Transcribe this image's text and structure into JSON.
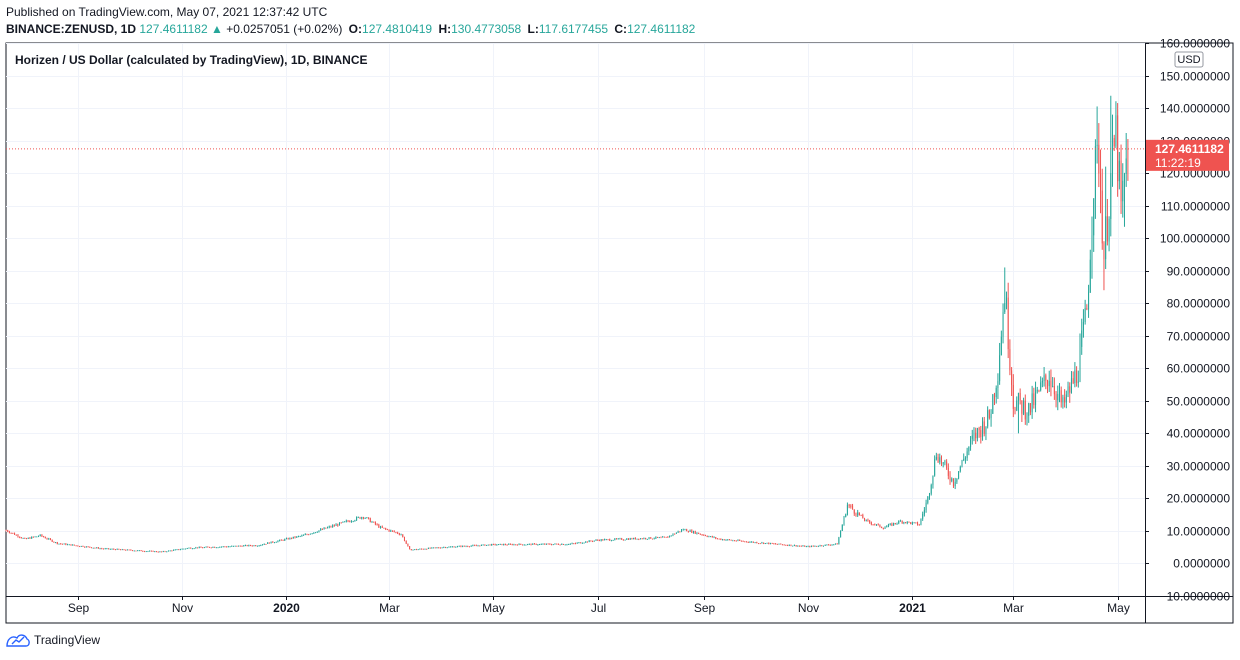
{
  "published_text": "Published on TradingView.com, May 07, 2021 12:37:42 UTC",
  "header": {
    "symbol": "BINANCE:ZENUSD, 1D",
    "last": "127.4611182",
    "change": "+0.0257051 (+0.02%)",
    "open_label": "O:",
    "open": "127.4810419",
    "high_label": "H:",
    "high": "130.4773058",
    "low_label": "L:",
    "low": "117.6177455",
    "close_label": "C:",
    "close": "127.4611182"
  },
  "footer": {
    "brand": "TradingView"
  },
  "colors": {
    "up": "#26a69a",
    "down": "#ef5350",
    "grid": "#f0f3fa",
    "axis": "#131722"
  },
  "chart_data": {
    "type": "candlestick",
    "title": "Horizen / US Dollar (calculated by TradingView), 1D, BINANCE",
    "currency": "USD",
    "price_label": "127.4611182",
    "countdown_label": "11:22:19",
    "ylim": [
      -10,
      160
    ],
    "y_ticks": [
      {
        "value": 160,
        "label": "160.0000000"
      },
      {
        "value": 150,
        "label": "150.0000000"
      },
      {
        "value": 140,
        "label": "140.0000000"
      },
      {
        "value": 130,
        "label": "130.0000000"
      },
      {
        "value": 120,
        "label": "120.0000000"
      },
      {
        "value": 110,
        "label": "110.0000000"
      },
      {
        "value": 100,
        "label": "100.0000000"
      },
      {
        "value": 90,
        "label": "90.0000000"
      },
      {
        "value": 80,
        "label": "80.0000000"
      },
      {
        "value": 70,
        "label": "70.0000000"
      },
      {
        "value": 60,
        "label": "60.0000000"
      },
      {
        "value": 50,
        "label": "50.0000000"
      },
      {
        "value": 40,
        "label": "40.0000000"
      },
      {
        "value": 30,
        "label": "30.0000000"
      },
      {
        "value": 20,
        "label": "20.0000000"
      },
      {
        "value": 10,
        "label": "10.0000000"
      },
      {
        "value": 0,
        "label": "0.0000000"
      },
      {
        "value": -10,
        "label": "−10.0000000"
      }
    ],
    "x_range": [
      "2019-07-21",
      "2021-05-17"
    ],
    "x_ticks": [
      {
        "date": "2019-09-01",
        "label": "Sep",
        "bold": false
      },
      {
        "date": "2019-11-01",
        "label": "Nov",
        "bold": false
      },
      {
        "date": "2020-01-01",
        "label": "2020",
        "bold": true
      },
      {
        "date": "2020-03-01",
        "label": "Mar",
        "bold": false
      },
      {
        "date": "2020-05-01",
        "label": "May",
        "bold": false
      },
      {
        "date": "2020-07-01",
        "label": "Jul",
        "bold": false
      },
      {
        "date": "2020-09-01",
        "label": "Sep",
        "bold": false
      },
      {
        "date": "2020-11-01",
        "label": "Nov",
        "bold": false
      },
      {
        "date": "2021-01-01",
        "label": "2021",
        "bold": true
      },
      {
        "date": "2021-03-01",
        "label": "Mar",
        "bold": false
      },
      {
        "date": "2021-05-01",
        "label": "May",
        "bold": false
      }
    ],
    "series_start": "2019-07-21",
    "close_anchors": [
      [
        "2019-07-21",
        10.2
      ],
      [
        "2019-08-01",
        7.5
      ],
      [
        "2019-08-10",
        8.6
      ],
      [
        "2019-08-20",
        6.2
      ],
      [
        "2019-09-15",
        4.6
      ],
      [
        "2019-10-20",
        3.6
      ],
      [
        "2019-11-05",
        4.8
      ],
      [
        "2019-12-15",
        5.6
      ],
      [
        "2020-01-10",
        8.5
      ],
      [
        "2020-01-25",
        11.0
      ],
      [
        "2020-02-15",
        14.5
      ],
      [
        "2020-02-25",
        11.0
      ],
      [
        "2020-03-08",
        9.0
      ],
      [
        "2020-03-13",
        4.2
      ],
      [
        "2020-04-01",
        5.0
      ],
      [
        "2020-05-01",
        5.8
      ],
      [
        "2020-06-15",
        6.0
      ],
      [
        "2020-07-01",
        7.2
      ],
      [
        "2020-08-10",
        8.0
      ],
      [
        "2020-08-20",
        10.5
      ],
      [
        "2020-09-10",
        7.5
      ],
      [
        "2020-10-01",
        6.5
      ],
      [
        "2020-11-01",
        5.2
      ],
      [
        "2020-11-18",
        6.0
      ],
      [
        "2020-11-24",
        18.0
      ],
      [
        "2020-12-05",
        13.0
      ],
      [
        "2020-12-15",
        11.0
      ],
      [
        "2020-12-25",
        13.0
      ],
      [
        "2021-01-05",
        12.0
      ],
      [
        "2021-01-10",
        20.0
      ],
      [
        "2021-01-15",
        34.0
      ],
      [
        "2021-01-25",
        25.0
      ],
      [
        "2021-02-05",
        38.0
      ],
      [
        "2021-02-15",
        45.0
      ],
      [
        "2021-02-20",
        60.0
      ],
      [
        "2021-02-24",
        84.0
      ],
      [
        "2021-03-01",
        50.0
      ],
      [
        "2021-03-10",
        47.0
      ],
      [
        "2021-03-22",
        58.0
      ],
      [
        "2021-03-30",
        48.0
      ],
      [
        "2021-04-08",
        60.0
      ],
      [
        "2021-04-13",
        78.0
      ],
      [
        "2021-04-17",
        118.0
      ],
      [
        "2021-04-20",
        126.0
      ],
      [
        "2021-04-23",
        95.0
      ],
      [
        "2021-04-27",
        118.0
      ],
      [
        "2021-04-30",
        132.0
      ],
      [
        "2021-05-03",
        108.0
      ],
      [
        "2021-05-07",
        127.46
      ]
    ],
    "high_spikes": [
      [
        "2021-02-24",
        91.0
      ],
      [
        "2021-04-19",
        140.5
      ],
      [
        "2021-04-27",
        143.8
      ],
      [
        "2021-04-24",
        122.0
      ]
    ],
    "low_dips": [
      [
        "2021-04-23",
        84.0
      ],
      [
        "2021-05-05",
        103.5
      ],
      [
        "2021-03-04",
        40.0
      ]
    ],
    "last_candle": {
      "date": "2021-05-07",
      "open": 127.4810419,
      "high": 130.4773058,
      "low": 117.6177455,
      "close": 127.4611182
    }
  }
}
